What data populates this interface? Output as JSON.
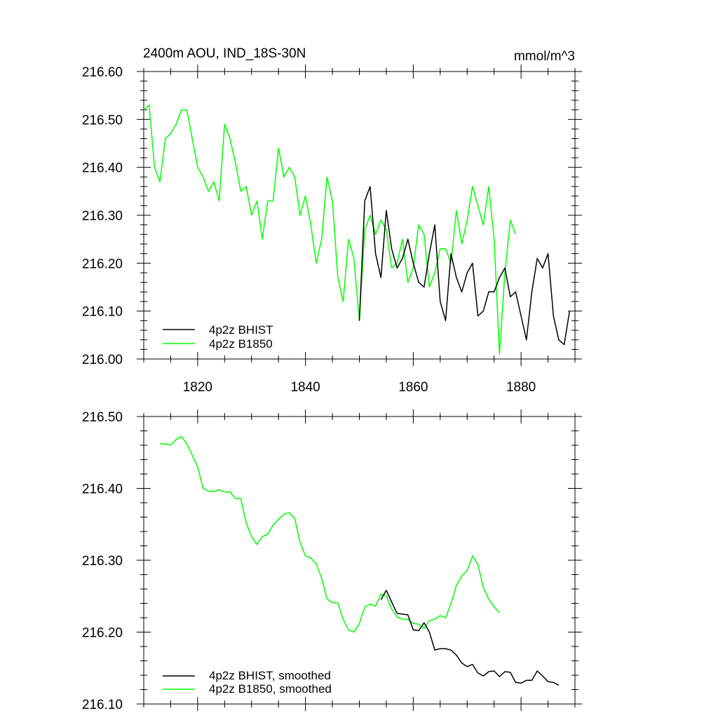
{
  "chart_data": [
    {
      "type": "line",
      "title_left": "2400m AOU, IND_18S-30N",
      "title_right": "mmol/m^3",
      "xlim": [
        1810,
        1890
      ],
      "ylim": [
        216.0,
        216.6
      ],
      "x_major_ticks": [
        1820,
        1840,
        1860,
        1880
      ],
      "x_tick_labels": [
        "1820",
        "1840",
        "1860",
        "1880"
      ],
      "y_major_ticks": [
        216.0,
        216.1,
        216.2,
        216.3,
        216.4,
        216.5,
        216.6
      ],
      "y_tick_labels": [
        "216.00",
        "216.10",
        "216.20",
        "216.30",
        "216.40",
        "216.50",
        "216.60"
      ],
      "legend_position": "bottom-left",
      "series": [
        {
          "name": "4p2z BHIST",
          "color": "#000000",
          "x": [
            1850,
            1851,
            1852,
            1853,
            1854,
            1855,
            1856,
            1857,
            1858,
            1859,
            1860,
            1861,
            1862,
            1863,
            1864,
            1865,
            1866,
            1867,
            1868,
            1869,
            1870,
            1871,
            1872,
            1873,
            1874,
            1875,
            1876,
            1877,
            1878,
            1879,
            1880,
            1881,
            1882,
            1883,
            1884,
            1885,
            1886,
            1887,
            1888,
            1889
          ],
          "values": [
            216.08,
            216.33,
            216.36,
            216.22,
            216.17,
            216.31,
            216.23,
            216.19,
            216.21,
            216.25,
            216.2,
            216.16,
            216.15,
            216.22,
            216.28,
            216.12,
            216.08,
            216.22,
            216.17,
            216.14,
            216.18,
            216.2,
            216.09,
            216.1,
            216.14,
            216.14,
            216.17,
            216.19,
            216.13,
            216.14,
            216.09,
            216.04,
            216.14,
            216.21,
            216.19,
            216.22,
            216.09,
            216.04,
            216.03,
            216.1
          ]
        },
        {
          "name": "4p2z B1850",
          "color": "#00ff00",
          "x": [
            1810,
            1811,
            1812,
            1813,
            1814,
            1815,
            1816,
            1817,
            1818,
            1819,
            1820,
            1821,
            1822,
            1823,
            1824,
            1825,
            1826,
            1827,
            1828,
            1829,
            1830,
            1831,
            1832,
            1833,
            1834,
            1835,
            1836,
            1837,
            1838,
            1839,
            1840,
            1841,
            1842,
            1843,
            1844,
            1845,
            1846,
            1847,
            1848,
            1849,
            1850,
            1851,
            1852,
            1853,
            1854,
            1855,
            1856,
            1857,
            1858,
            1859,
            1860,
            1861,
            1862,
            1863,
            1864,
            1865,
            1866,
            1867,
            1868,
            1869,
            1870,
            1871,
            1872,
            1873,
            1874,
            1875,
            1876,
            1877,
            1878,
            1879
          ],
          "values": [
            216.52,
            216.53,
            216.4,
            216.37,
            216.46,
            216.47,
            216.49,
            216.52,
            216.52,
            216.46,
            216.4,
            216.38,
            216.35,
            216.37,
            216.33,
            216.49,
            216.46,
            216.41,
            216.35,
            216.36,
            216.3,
            216.33,
            216.25,
            216.33,
            216.33,
            216.44,
            216.38,
            216.4,
            216.38,
            216.3,
            216.34,
            216.28,
            216.2,
            216.25,
            216.38,
            216.33,
            216.17,
            216.12,
            216.25,
            216.21,
            216.08,
            216.27,
            216.3,
            216.26,
            216.29,
            216.27,
            216.19,
            216.2,
            216.25,
            216.16,
            216.19,
            216.28,
            216.26,
            216.15,
            216.18,
            216.23,
            216.23,
            216.2,
            216.31,
            216.24,
            216.29,
            216.36,
            216.32,
            216.28,
            216.36,
            216.25,
            216.01,
            216.18,
            216.29,
            216.26
          ]
        }
      ]
    },
    {
      "type": "line",
      "xlim": [
        1810,
        1890
      ],
      "ylim": [
        216.1,
        216.5
      ],
      "x_major_ticks": [
        1820,
        1840,
        1860,
        1880
      ],
      "y_major_ticks": [
        216.1,
        216.2,
        216.3,
        216.4,
        216.5
      ],
      "y_tick_labels": [
        "216.10",
        "216.20",
        "216.30",
        "216.40",
        "216.50"
      ],
      "legend_position": "bottom-left",
      "series": [
        {
          "name": "4p2z BHIST, smoothed",
          "color": "#000000",
          "x": [
            1854,
            1855,
            1856,
            1857,
            1858,
            1859,
            1860,
            1861,
            1862,
            1863,
            1864,
            1865,
            1866,
            1867,
            1868,
            1869,
            1870,
            1871,
            1872,
            1873,
            1874,
            1875,
            1876,
            1877,
            1878,
            1879,
            1880,
            1881,
            1882,
            1883,
            1884,
            1885,
            1886,
            1887
          ],
          "values": [
            216.245,
            216.258,
            216.242,
            216.226,
            216.225,
            216.224,
            216.203,
            216.202,
            216.213,
            216.2,
            216.175,
            216.177,
            216.177,
            216.175,
            216.168,
            216.157,
            216.152,
            216.155,
            216.143,
            216.139,
            216.145,
            216.146,
            216.138,
            216.145,
            216.144,
            216.13,
            216.129,
            216.133,
            216.133,
            216.146,
            216.139,
            216.131,
            216.13,
            216.126
          ]
        },
        {
          "name": "4p2z B1850, smoothed",
          "color": "#00ff00",
          "x": [
            1813,
            1814,
            1815,
            1816,
            1817,
            1818,
            1819,
            1820,
            1821,
            1822,
            1823,
            1824,
            1825,
            1826,
            1827,
            1828,
            1829,
            1830,
            1831,
            1832,
            1833,
            1834,
            1835,
            1836,
            1837,
            1838,
            1839,
            1840,
            1841,
            1842,
            1843,
            1844,
            1845,
            1846,
            1847,
            1848,
            1849,
            1850,
            1851,
            1852,
            1853,
            1854,
            1855,
            1856,
            1857,
            1858,
            1859,
            1860,
            1861,
            1862,
            1863,
            1864,
            1865,
            1866,
            1867,
            1868,
            1869,
            1870,
            1871,
            1872,
            1873,
            1874,
            1875,
            1876
          ],
          "values": [
            216.462,
            216.462,
            216.46,
            216.468,
            216.472,
            216.462,
            216.446,
            216.43,
            216.4,
            216.396,
            216.396,
            216.398,
            216.395,
            216.395,
            216.386,
            216.386,
            216.352,
            216.333,
            216.322,
            216.333,
            216.336,
            216.349,
            216.357,
            216.364,
            216.366,
            216.358,
            216.325,
            216.306,
            216.303,
            216.295,
            216.275,
            216.246,
            216.241,
            216.241,
            216.218,
            216.203,
            216.2,
            216.212,
            216.235,
            216.239,
            216.236,
            216.253,
            216.25,
            216.232,
            216.221,
            216.218,
            216.218,
            216.212,
            216.211,
            216.205,
            216.216,
            216.218,
            216.223,
            216.22,
            216.24,
            216.265,
            216.278,
            216.286,
            216.306,
            216.294,
            216.262,
            216.246,
            216.235,
            216.227
          ]
        }
      ]
    }
  ]
}
